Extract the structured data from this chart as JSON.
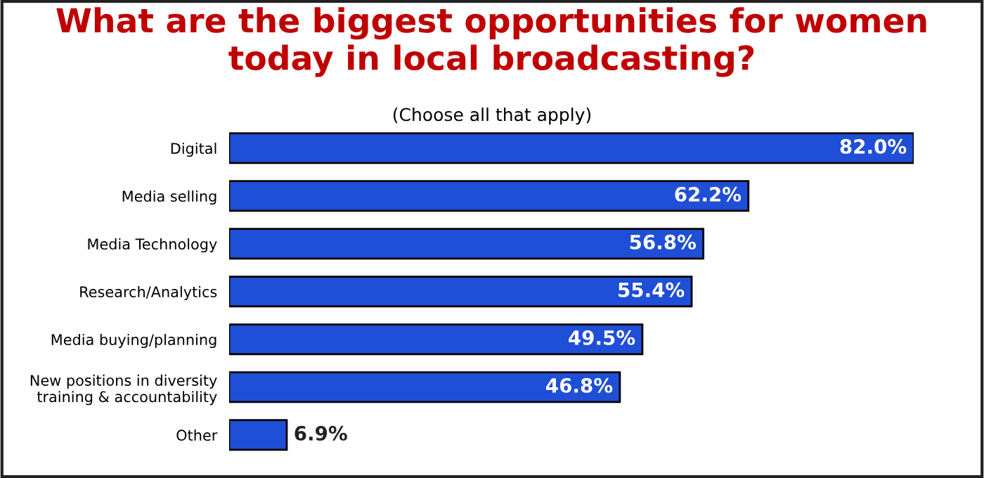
{
  "chart_data": {
    "type": "bar",
    "orientation": "horizontal",
    "title": "What are the biggest opportunities for women today in local broadcasting?",
    "subtitle": "(Choose all that apply)",
    "categories": [
      "Digital",
      "Media selling",
      "Media Technology",
      "Research/Analytics",
      "Media buying/planning",
      "New positions in diversity training & accountability",
      "Other"
    ],
    "values": [
      82.0,
      62.2,
      56.8,
      55.4,
      49.5,
      46.8,
      6.9
    ],
    "value_labels": [
      "82.0%",
      "62.2%",
      "56.8%",
      "55.4%",
      "49.5%",
      "46.8%",
      "6.9%"
    ],
    "color": "#1f4fd6",
    "grid": false,
    "legend": false
  }
}
